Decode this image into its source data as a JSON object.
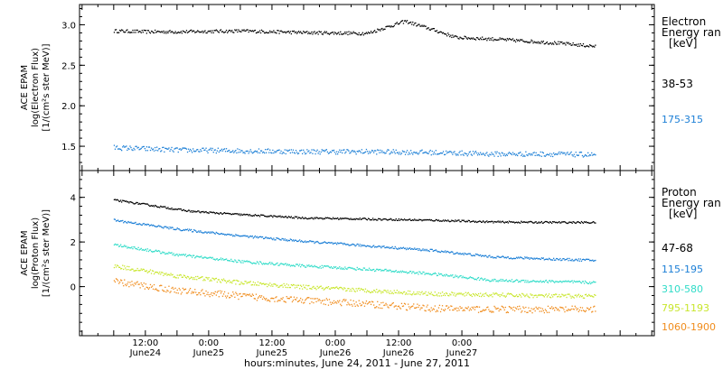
{
  "chart_data": [
    {
      "type": "scatter",
      "panel": "electron",
      "ylabel_lines": [
        "ACE EPAM",
        "log(Electron Flux)",
        "[1/(cm²s ster MeV)]"
      ],
      "ylim": [
        1.2,
        3.25
      ],
      "yticks": [
        1.5,
        2.0,
        2.5,
        3.0
      ],
      "ytick_labels": [
        "1.5",
        "2.0",
        "2.5",
        "3.0"
      ],
      "legend_title": [
        "Electron",
        "Energy ran",
        "[keV]"
      ],
      "series": [
        {
          "name": "38-53",
          "color": "#000000",
          "x": [
            0,
            0.25,
            0.5,
            1,
            1.5,
            2,
            2.3,
            2.55,
            2.7,
            3,
            3.5,
            3.8
          ],
          "y": [
            2.93,
            2.92,
            2.92,
            2.93,
            2.91,
            2.9,
            3.05,
            2.93,
            2.85,
            2.83,
            2.78,
            2.74
          ],
          "noise": 0.02
        },
        {
          "name": "175-315",
          "color": "#1c7fd6",
          "x": [
            0,
            0.5,
            1,
            1.5,
            2,
            2.5,
            3,
            3.5,
            3.8
          ],
          "y": [
            1.49,
            1.46,
            1.45,
            1.44,
            1.44,
            1.43,
            1.41,
            1.41,
            1.4
          ],
          "noise": 0.03
        }
      ]
    },
    {
      "type": "scatter",
      "panel": "proton",
      "ylabel_lines": [
        "ACE EPAM",
        "log(Proton Flux)",
        "[1/(cm²s ster MeV)]"
      ],
      "ylim": [
        -2.2,
        5.2
      ],
      "yticks": [
        0,
        2,
        4
      ],
      "ytick_labels": [
        "0",
        "2",
        "4"
      ],
      "legend_title": [
        "Proton",
        "Energy ran",
        "[keV]"
      ],
      "series": [
        {
          "name": "47-68",
          "color": "#000000",
          "x": [
            0,
            0.25,
            0.6,
            1,
            1.5,
            2,
            2.5,
            3,
            3.5,
            3.8
          ],
          "y": [
            3.9,
            3.7,
            3.4,
            3.25,
            3.1,
            3.05,
            3.0,
            2.92,
            2.9,
            2.9
          ],
          "noise": 0.04
        },
        {
          "name": "115-195",
          "color": "#1c7fd6",
          "x": [
            0,
            0.5,
            1,
            1.5,
            2,
            2.5,
            3,
            3.5,
            3.8
          ],
          "y": [
            3.0,
            2.6,
            2.3,
            2.05,
            1.85,
            1.65,
            1.35,
            1.25,
            1.2
          ],
          "noise": 0.05
        },
        {
          "name": "310-580",
          "color": "#30dcc8",
          "x": [
            0,
            0.5,
            1,
            1.5,
            2,
            2.5,
            3,
            3.5,
            3.8
          ],
          "y": [
            1.9,
            1.45,
            1.15,
            0.95,
            0.8,
            0.6,
            0.3,
            0.25,
            0.2
          ],
          "noise": 0.06
        },
        {
          "name": "795-1193",
          "color": "#c8e62c",
          "x": [
            0,
            0.5,
            1,
            1.5,
            2,
            2.5,
            3,
            3.5,
            3.8
          ],
          "y": [
            0.95,
            0.5,
            0.2,
            0.0,
            -0.15,
            -0.3,
            -0.35,
            -0.4,
            -0.4
          ],
          "noise": 0.09
        },
        {
          "name": "1060-1900",
          "color": "#f08c1c",
          "x": [
            0,
            0.5,
            1,
            1.5,
            2,
            2.5,
            3,
            3.5,
            3.8
          ],
          "y": [
            0.25,
            -0.15,
            -0.4,
            -0.6,
            -0.75,
            -0.95,
            -1.0,
            -1.0,
            -1.0
          ],
          "noise": 0.15
        }
      ]
    }
  ],
  "xaxis": {
    "xlim": [
      -0.27,
      4.27
    ],
    "major_ticks": [
      {
        "x": 0.25,
        "time": "12:00",
        "date": "June24"
      },
      {
        "x": 0.75,
        "time": "0:00",
        "date": "June25"
      },
      {
        "x": 1.25,
        "time": "12:00",
        "date": "June25"
      },
      {
        "x": 1.75,
        "time": "0:00",
        "date": "June26"
      },
      {
        "x": 2.25,
        "time": "12:00",
        "date": "June26"
      },
      {
        "x": 2.75,
        "time": "0:00",
        "date": "June27"
      }
    ],
    "label": "hours:minutes, June 24, 2011 - June 27, 2011"
  }
}
